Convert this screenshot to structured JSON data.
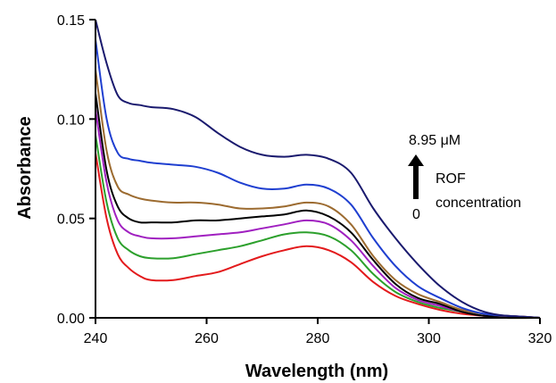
{
  "chart_data": {
    "type": "line",
    "xlabel": "Wavelength (nm)",
    "ylabel": "Absorbance",
    "xlim": [
      240,
      320
    ],
    "ylim": [
      0,
      0.15
    ],
    "xticks": [
      "240",
      "260",
      "280",
      "300",
      "320"
    ],
    "yticks": [
      "0.00",
      "0.05",
      "0.10",
      "0.15"
    ],
    "grid": false,
    "annotations": {
      "top": "8.95 μM",
      "label1": "ROF",
      "label2": "concentration",
      "bottom": "0"
    },
    "x": [
      240,
      242,
      244,
      246,
      248,
      250,
      254,
      258,
      262,
      266,
      270,
      274,
      278,
      282,
      286,
      290,
      294,
      298,
      302,
      306,
      310,
      314,
      320
    ],
    "series": [
      {
        "color": "#e31a1c",
        "values": [
          0.083,
          0.05,
          0.032,
          0.025,
          0.021,
          0.019,
          0.019,
          0.021,
          0.023,
          0.027,
          0.031,
          0.034,
          0.036,
          0.034,
          0.028,
          0.018,
          0.011,
          0.007,
          0.004,
          0.002,
          0.001,
          0.0,
          0.0
        ]
      },
      {
        "color": "#2ca02c",
        "values": [
          0.092,
          0.058,
          0.04,
          0.034,
          0.031,
          0.03,
          0.03,
          0.032,
          0.034,
          0.036,
          0.039,
          0.042,
          0.043,
          0.041,
          0.034,
          0.022,
          0.013,
          0.008,
          0.005,
          0.003,
          0.001,
          0.0,
          0.0
        ]
      },
      {
        "color": "#a020c0",
        "values": [
          0.105,
          0.068,
          0.049,
          0.043,
          0.041,
          0.04,
          0.04,
          0.041,
          0.042,
          0.043,
          0.045,
          0.047,
          0.049,
          0.047,
          0.039,
          0.026,
          0.015,
          0.009,
          0.006,
          0.003,
          0.001,
          0.001,
          0.0
        ]
      },
      {
        "color": "#000000",
        "values": [
          0.113,
          0.074,
          0.056,
          0.05,
          0.048,
          0.048,
          0.048,
          0.049,
          0.049,
          0.05,
          0.051,
          0.052,
          0.054,
          0.051,
          0.043,
          0.029,
          0.017,
          0.01,
          0.007,
          0.003,
          0.001,
          0.001,
          0.0
        ]
      },
      {
        "color": "#9c6b30",
        "values": [
          0.125,
          0.084,
          0.066,
          0.062,
          0.06,
          0.059,
          0.058,
          0.058,
          0.057,
          0.055,
          0.055,
          0.056,
          0.058,
          0.056,
          0.047,
          0.031,
          0.019,
          0.012,
          0.008,
          0.004,
          0.002,
          0.001,
          0.0
        ]
      },
      {
        "color": "#1f3fd0",
        "values": [
          0.14,
          0.1,
          0.083,
          0.08,
          0.079,
          0.078,
          0.077,
          0.076,
          0.073,
          0.068,
          0.065,
          0.065,
          0.067,
          0.065,
          0.057,
          0.04,
          0.026,
          0.016,
          0.01,
          0.005,
          0.002,
          0.001,
          0.0
        ]
      },
      {
        "color": "#1a1a6e",
        "values": [
          0.15,
          0.128,
          0.112,
          0.108,
          0.107,
          0.106,
          0.105,
          0.101,
          0.093,
          0.086,
          0.082,
          0.081,
          0.082,
          0.08,
          0.073,
          0.055,
          0.04,
          0.027,
          0.016,
          0.008,
          0.003,
          0.001,
          0.0
        ]
      }
    ]
  }
}
